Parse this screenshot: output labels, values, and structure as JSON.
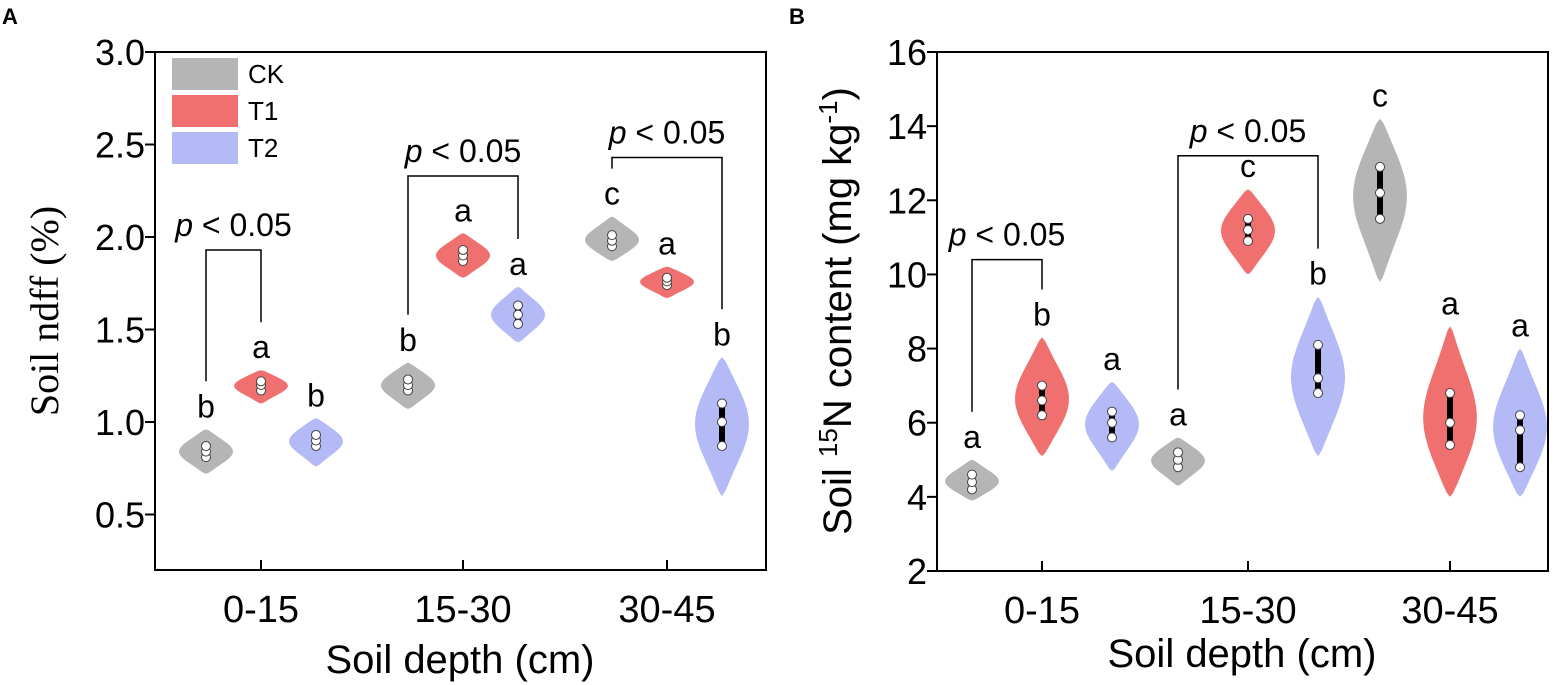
{
  "panels": [
    {
      "letter": "A",
      "ylabel": "Soil ndff (%)",
      "xlabel": "Soil depth (cm)",
      "pvalue_prefix": "p",
      "pvalue_rest": " < 0.05"
    },
    {
      "letter": "B",
      "ylabel_prefix": "Soil ",
      "ylabel_sup": "15",
      "ylabel_mid": "N content (mg kg",
      "ylabel_sup2": "-1",
      "ylabel_suffix": ")",
      "xlabel": "Soil depth (cm)",
      "pvalue_prefix": "p",
      "pvalue_rest": " < 0.05"
    }
  ],
  "legend": [
    {
      "name": "CK",
      "color": "#b5b5b5"
    },
    {
      "name": "T1",
      "color": "#f07070"
    },
    {
      "name": "T2",
      "color": "#b3baf5"
    }
  ],
  "chart_data": [
    {
      "type": "violin",
      "title": "",
      "xlabel": "Soil depth (cm)",
      "ylabel": "Soil ndff (%)",
      "categories": [
        "0-15",
        "15-30",
        "30-45"
      ],
      "ylim": [
        0.2,
        3.0
      ],
      "yticks": [
        0.5,
        1.0,
        1.5,
        2.0,
        2.5,
        3.0
      ],
      "series": [
        {
          "name": "CK",
          "color": "#b5b5b5",
          "groups": [
            {
              "points": [
                0.81,
                0.84,
                0.87
              ],
              "min": 0.72,
              "max": 0.96,
              "letter": "b"
            },
            {
              "points": [
                1.17,
                1.2,
                1.23
              ],
              "min": 1.07,
              "max": 1.32,
              "letter": "b"
            },
            {
              "points": [
                1.95,
                1.98,
                2.01
              ],
              "min": 1.87,
              "max": 2.11,
              "letter": "c"
            }
          ]
        },
        {
          "name": "T1",
          "color": "#f07070",
          "groups": [
            {
              "points": [
                1.17,
                1.2,
                1.22
              ],
              "min": 1.1,
              "max": 1.28,
              "letter": "a"
            },
            {
              "points": [
                1.87,
                1.9,
                1.93
              ],
              "min": 1.78,
              "max": 2.02,
              "letter": "a"
            },
            {
              "points": [
                1.74,
                1.76,
                1.78
              ],
              "min": 1.67,
              "max": 1.84,
              "letter": "a"
            }
          ]
        },
        {
          "name": "T2",
          "color": "#b3baf5",
          "groups": [
            {
              "points": [
                0.87,
                0.9,
                0.93
              ],
              "min": 0.76,
              "max": 1.02,
              "letter": "b"
            },
            {
              "points": [
                1.53,
                1.58,
                1.63
              ],
              "min": 1.43,
              "max": 1.73,
              "letter": "a"
            },
            {
              "points": [
                0.87,
                1.0,
                1.1
              ],
              "min": 0.6,
              "max": 1.35,
              "letter": "b"
            }
          ]
        }
      ],
      "brackets": [
        {
          "category": 0,
          "from": "CK",
          "to": "T1",
          "label": "p < 0.05",
          "height": 1.93
        },
        {
          "category": 1,
          "from": "CK",
          "to": "T2",
          "label": "p < 0.05",
          "height": 2.33
        },
        {
          "category": 2,
          "from": "CK",
          "to": "T2",
          "label": "p < 0.05",
          "height": 2.43
        }
      ]
    },
    {
      "type": "violin",
      "title": "",
      "xlabel": "Soil depth (cm)",
      "ylabel": "Soil 15N content (mg kg-1)",
      "categories": [
        "0-15",
        "15-30",
        "30-45"
      ],
      "ylim": [
        2,
        16
      ],
      "yticks": [
        2,
        4,
        6,
        8,
        10,
        12,
        14,
        16
      ],
      "series": [
        {
          "name": "CK",
          "color": "#b5b5b5",
          "groups": [
            {
              "points": [
                4.2,
                4.4,
                4.6
              ],
              "min": 3.9,
              "max": 5.0,
              "letter": "a"
            },
            {
              "points": [
                4.8,
                5.0,
                5.2
              ],
              "min": 4.3,
              "max": 5.6,
              "letter": "a"
            },
            {
              "points": [
                11.5,
                12.2,
                12.9
              ],
              "min": 9.8,
              "max": 14.2,
              "letter": "c"
            }
          ]
        },
        {
          "name": "T1",
          "color": "#f07070",
          "groups": [
            {
              "points": [
                6.2,
                6.6,
                7.0
              ],
              "min": 5.1,
              "max": 8.3,
              "letter": "b"
            },
            {
              "points": [
                10.9,
                11.2,
                11.5
              ],
              "min": 10.0,
              "max": 12.3,
              "letter": "c"
            },
            {
              "points": [
                5.4,
                6.0,
                6.8
              ],
              "min": 4.0,
              "max": 8.6,
              "letter": "a"
            }
          ]
        },
        {
          "name": "T2",
          "color": "#b3baf5",
          "groups": [
            {
              "points": [
                5.6,
                6.0,
                6.3
              ],
              "min": 4.7,
              "max": 7.1,
              "letter": "a"
            },
            {
              "points": [
                6.8,
                7.2,
                8.1
              ],
              "min": 5.1,
              "max": 9.4,
              "letter": "b"
            },
            {
              "points": [
                4.8,
                5.8,
                6.2
              ],
              "min": 4.0,
              "max": 8.0,
              "letter": "a"
            }
          ]
        }
      ],
      "brackets": [
        {
          "category": 0,
          "from": "CK",
          "to": "T1",
          "label": "p < 0.05",
          "height": 10.4
        },
        {
          "category": 1,
          "from": "CK",
          "to": "T2",
          "label": "p < 0.05",
          "height": 13.2
        }
      ]
    }
  ]
}
